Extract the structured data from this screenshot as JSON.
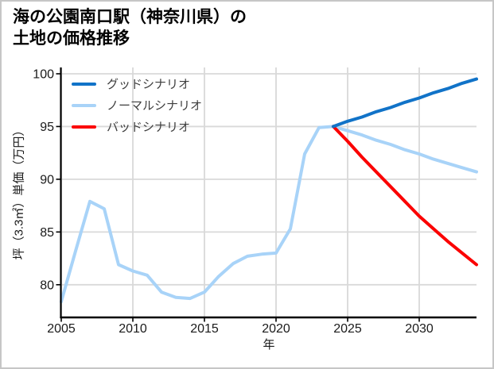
{
  "window": {
    "background": "#ffffff",
    "border_color": "#c6c6c6"
  },
  "header": {
    "title_line1": "海の公園南口駅（神奈川県）の",
    "title_line2": "土地の価格推移"
  },
  "chart_data": {
    "type": "line",
    "title": "海の公園南口駅（神奈川県）の土地の価格推移",
    "xlabel": "年",
    "ylabel": "坪（3.3㎡）単価（万円）",
    "xlim": [
      2005,
      2034
    ],
    "ylim": [
      76.9,
      100.6
    ],
    "x_ticks": [
      2005,
      2010,
      2015,
      2020,
      2025,
      2030
    ],
    "y_ticks": [
      80,
      85,
      90,
      95,
      100
    ],
    "grid": true,
    "grid_color": "#d9d9d9",
    "axis_color": "#000000",
    "tick_label_color": "#1a1a1a",
    "legend": {
      "position": "upper-left",
      "frame": false,
      "text_color": "#3d3d3d"
    },
    "series": [
      {
        "name": "グッドシナリオ",
        "color": "#1173c8",
        "line_width": 4,
        "draw_order": 3,
        "x": [
          2024,
          2025,
          2026,
          2027,
          2028,
          2029,
          2030,
          2031,
          2032,
          2033,
          2034
        ],
        "values": [
          95.0,
          95.5,
          95.9,
          96.4,
          96.8,
          97.3,
          97.7,
          98.2,
          98.6,
          99.1,
          99.5
        ]
      },
      {
        "name": "ノーマルシナリオ",
        "color": "#a8d3f8",
        "line_width": 4,
        "draw_order": 1,
        "x": [
          2005,
          2006,
          2007,
          2008,
          2009,
          2010,
          2011,
          2012,
          2013,
          2014,
          2015,
          2016,
          2017,
          2018,
          2019,
          2020,
          2021,
          2022,
          2023,
          2024,
          2025,
          2026,
          2027,
          2028,
          2029,
          2030,
          2031,
          2032,
          2033,
          2034
        ],
        "values": [
          78.4,
          83.2,
          87.9,
          87.2,
          81.9,
          81.3,
          80.9,
          79.3,
          78.8,
          78.7,
          79.3,
          80.8,
          82.0,
          82.7,
          82.9,
          83.0,
          85.3,
          92.4,
          94.9,
          95.0,
          94.6,
          94.2,
          93.7,
          93.3,
          92.8,
          92.4,
          91.9,
          91.5,
          91.1,
          90.7
        ]
      },
      {
        "name": "バッドシナリオ",
        "color": "#fb0000",
        "line_width": 4,
        "draw_order": 2,
        "x": [
          2024,
          2025,
          2026,
          2027,
          2028,
          2029,
          2030,
          2031,
          2032,
          2033,
          2034
        ],
        "values": [
          95.0,
          93.6,
          92.1,
          90.7,
          89.3,
          87.9,
          86.5,
          85.3,
          84.1,
          83.0,
          81.9
        ]
      }
    ]
  }
}
